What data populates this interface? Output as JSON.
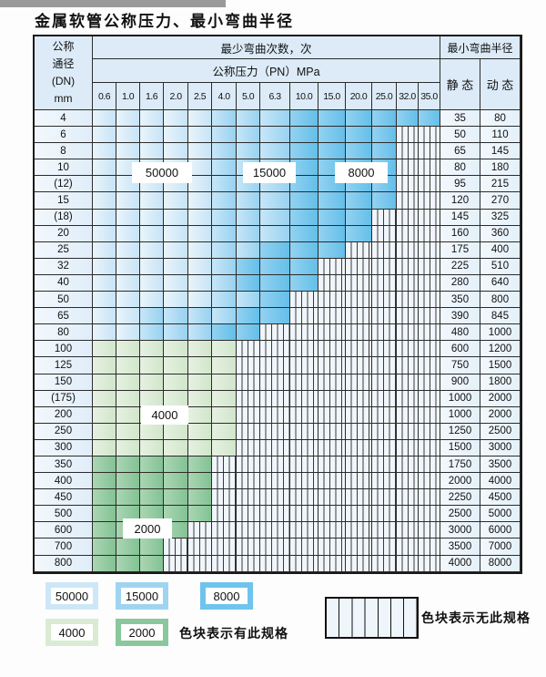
{
  "title": "金属软管公称压力、最小弯曲半径",
  "colors": {
    "blue_50000": "#cde7f7",
    "blue_15000": "#9fd4f1",
    "blue_8000": "#6ec4ec",
    "green_4000": "#d9ecd3",
    "green_2000": "#8bc79c",
    "header_bg": "#dcebf7",
    "stripe_bg": "#f0f6fb",
    "grid_line": "#2b2b2b"
  },
  "table": {
    "header": {
      "dn_lines": [
        "公称",
        "通径",
        "(DN)",
        "mm"
      ],
      "bend_cycles": "最少弯曲次数，次",
      "pressure": "公称压力（PN）MPa",
      "min_radius": "最小弯曲半径",
      "static": "静 态",
      "dynamic": "动 态",
      "pressures": [
        "0.6",
        "1.0",
        "1.6",
        "2.0",
        "2.5",
        "4.0",
        "5.0",
        "6.3",
        "10.0",
        "15.0",
        "20.0",
        "25.0",
        "32.0",
        "35.0"
      ]
    },
    "tone_key": {
      "L": "50000",
      "M": "15000",
      "D": "8000",
      "G": "4000",
      "g": "2000",
      "N": "no-spec"
    },
    "rows": [
      {
        "dn": "4",
        "cells": "LLLLLMMMDDDDDD",
        "static": "35",
        "dynamic": "80"
      },
      {
        "dn": "6",
        "cells": "LLLLLMMMDDDDNN",
        "static": "50",
        "dynamic": "110"
      },
      {
        "dn": "8",
        "cells": "LLLLLMMMDDDDNN",
        "static": "65",
        "dynamic": "145"
      },
      {
        "dn": "10",
        "cells": "LLLLLMMMDDDDNN",
        "static": "80",
        "dynamic": "180"
      },
      {
        "dn": "(12)",
        "cells": "LLLLLMMMDDDDNN",
        "static": "95",
        "dynamic": "215"
      },
      {
        "dn": "15",
        "cells": "LLLLLMMMDDDDNN",
        "static": "120",
        "dynamic": "270"
      },
      {
        "dn": "(18)",
        "cells": "LLLLLMMMDDDNNN",
        "static": "145",
        "dynamic": "325"
      },
      {
        "dn": "20",
        "cells": "LLLLLMMMDDDNNN",
        "static": "160",
        "dynamic": "360"
      },
      {
        "dn": "25",
        "cells": "LLLLLMMDDDNNNN",
        "static": "175",
        "dynamic": "400"
      },
      {
        "dn": "32",
        "cells": "LLLLLMDDDNNNNN",
        "static": "225",
        "dynamic": "510"
      },
      {
        "dn": "40",
        "cells": "LLLLLMDDDNNNNN",
        "static": "280",
        "dynamic": "640"
      },
      {
        "dn": "50",
        "cells": "LLLLLMMDNNNNNN",
        "static": "350",
        "dynamic": "800"
      },
      {
        "dn": "65",
        "cells": "LLMMMMDDNNNNNN",
        "static": "390",
        "dynamic": "845"
      },
      {
        "dn": "80",
        "cells": "LLMMMDDNNNNNNN",
        "static": "480",
        "dynamic": "1000"
      },
      {
        "dn": "100",
        "cells": "GGGGGGNNNNNNNN",
        "static": "600",
        "dynamic": "1200"
      },
      {
        "dn": "125",
        "cells": "GGGGGGNNNNNNNN",
        "static": "750",
        "dynamic": "1500"
      },
      {
        "dn": "150",
        "cells": "GGGGGGNNNNNNNN",
        "static": "900",
        "dynamic": "1800"
      },
      {
        "dn": "(175)",
        "cells": "GGGGGGNNNNNNNN",
        "static": "1000",
        "dynamic": "2000"
      },
      {
        "dn": "200",
        "cells": "GGGGGGNNNNNNNN",
        "static": "1000",
        "dynamic": "2000"
      },
      {
        "dn": "250",
        "cells": "GGGGGGNNNNNNNN",
        "static": "1250",
        "dynamic": "2500"
      },
      {
        "dn": "300",
        "cells": "GGGGGGNNNNNNNN",
        "static": "1500",
        "dynamic": "3000"
      },
      {
        "dn": "350",
        "cells": "gggggNNNNNNNNN",
        "static": "1750",
        "dynamic": "3500"
      },
      {
        "dn": "400",
        "cells": "gggggNNNNNNNNN",
        "static": "2000",
        "dynamic": "4000"
      },
      {
        "dn": "450",
        "cells": "gggggNNNNNNNNN",
        "static": "2250",
        "dynamic": "4500"
      },
      {
        "dn": "500",
        "cells": "gggggNNNNNNNNN",
        "static": "2500",
        "dynamic": "5000"
      },
      {
        "dn": "600",
        "cells": "ggggNNNNNNNNNN",
        "static": "3000",
        "dynamic": "6000"
      },
      {
        "dn": "700",
        "cells": "gggNNNNNNNNNNN",
        "static": "3500",
        "dynamic": "7000"
      },
      {
        "dn": "800",
        "cells": "gggNNNNNNNNNNN",
        "static": "4000",
        "dynamic": "8000"
      }
    ],
    "overlays": [
      {
        "label": "50000"
      },
      {
        "label": "15000"
      },
      {
        "label": "8000"
      },
      {
        "label": "4000"
      },
      {
        "label": "2000"
      }
    ]
  },
  "legend": {
    "items": [
      {
        "label": "50000",
        "color": "#cde7f7"
      },
      {
        "label": "15000",
        "color": "#9fd4f1"
      },
      {
        "label": "8000",
        "color": "#6ec4ec"
      },
      {
        "label": "4000",
        "color": "#d9ecd3"
      },
      {
        "label": "2000",
        "color": "#8bc79c"
      }
    ],
    "has_spec": "色块表示有此规格",
    "no_spec": "色块表示无此规格"
  }
}
